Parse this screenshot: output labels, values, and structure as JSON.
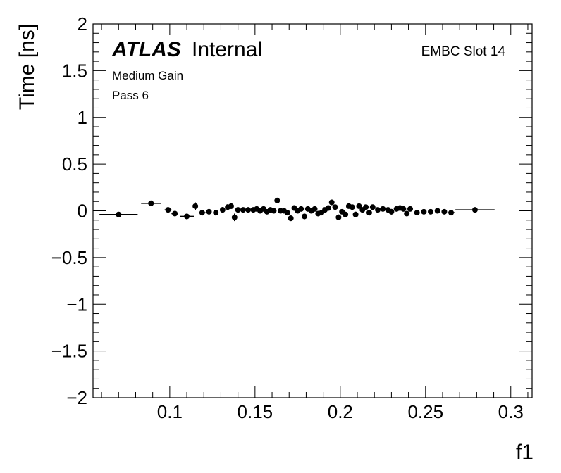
{
  "chart_data": {
    "type": "scatter",
    "xlabel": "f1",
    "ylabel": "Time [ns]",
    "xlim": [
      0.055,
      0.3125
    ],
    "ylim": [
      -2,
      2
    ],
    "x_ticks": [
      0.1,
      0.15,
      0.2,
      0.25,
      0.3
    ],
    "x_tick_labels": [
      "0.1",
      "0.15",
      "0.2",
      "0.25",
      "0.3"
    ],
    "y_ticks": [
      -2,
      -1.5,
      -1,
      -0.5,
      0,
      0.5,
      1,
      1.5,
      2
    ],
    "y_tick_labels": [
      "−2",
      "−1.5",
      "−1",
      "−0.5",
      "0",
      "0.5",
      "1",
      "1.5",
      "2"
    ],
    "grid": false,
    "annotations": {
      "atlas": "ATLAS",
      "internal": "Internal",
      "gain": "Medium Gain",
      "pass": "Pass 6",
      "slot": "EMBC Slot 14"
    },
    "points": [
      {
        "x": 0.07,
        "y": -0.04,
        "xerr": 0.0112,
        "yerr": 0.02
      },
      {
        "x": 0.089,
        "y": 0.08,
        "xerr": 0.0058,
        "yerr": 0.03
      },
      {
        "x": 0.099,
        "y": 0.01,
        "xerr": 0.002,
        "yerr": 0.02
      },
      {
        "x": 0.103,
        "y": -0.03,
        "xerr": 0.002,
        "yerr": 0.02
      },
      {
        "x": 0.11,
        "y": -0.06,
        "xerr": 0.0041,
        "yerr": 0.03
      },
      {
        "x": 0.115,
        "y": 0.05,
        "xerr": 0.001,
        "yerr": 0.04
      },
      {
        "x": 0.119,
        "y": -0.02,
        "xerr": 0.002,
        "yerr": 0.03
      },
      {
        "x": 0.123,
        "y": -0.01,
        "xerr": 0.001,
        "yerr": 0.03
      },
      {
        "x": 0.127,
        "y": -0.02,
        "xerr": 0.001,
        "yerr": 0.03
      },
      {
        "x": 0.131,
        "y": 0.01,
        "xerr": 0.001,
        "yerr": 0.03
      },
      {
        "x": 0.134,
        "y": 0.04,
        "xerr": 0.0008,
        "yerr": 0.03
      },
      {
        "x": 0.136,
        "y": 0.05,
        "xerr": 0.0008,
        "yerr": 0.03
      },
      {
        "x": 0.138,
        "y": -0.07,
        "xerr": 0.0008,
        "yerr": 0.04
      },
      {
        "x": 0.14,
        "y": 0.01,
        "xerr": 0.0008,
        "yerr": 0.02
      },
      {
        "x": 0.143,
        "y": 0.01,
        "xerr": 0.0008,
        "yerr": 0.02
      },
      {
        "x": 0.146,
        "y": 0.01,
        "xerr": 0.0008,
        "yerr": 0.02
      },
      {
        "x": 0.149,
        "y": 0.01,
        "xerr": 0.0008,
        "yerr": 0.02
      },
      {
        "x": 0.151,
        "y": 0.02,
        "xerr": 0.0008,
        "yerr": 0.02
      },
      {
        "x": 0.153,
        "y": 0.0,
        "xerr": 0.0008,
        "yerr": 0.02
      },
      {
        "x": 0.155,
        "y": 0.02,
        "xerr": 0.0008,
        "yerr": 0.02
      },
      {
        "x": 0.157,
        "y": -0.01,
        "xerr": 0.0008,
        "yerr": 0.02
      },
      {
        "x": 0.159,
        "y": 0.01,
        "xerr": 0.0008,
        "yerr": 0.02
      },
      {
        "x": 0.161,
        "y": 0.0,
        "xerr": 0.0008,
        "yerr": 0.02
      },
      {
        "x": 0.163,
        "y": 0.11,
        "xerr": 0.0008,
        "yerr": 0.03
      },
      {
        "x": 0.165,
        "y": 0.0,
        "xerr": 0.0008,
        "yerr": 0.02
      },
      {
        "x": 0.167,
        "y": 0.0,
        "xerr": 0.0008,
        "yerr": 0.02
      },
      {
        "x": 0.169,
        "y": -0.02,
        "xerr": 0.0008,
        "yerr": 0.02
      },
      {
        "x": 0.171,
        "y": -0.08,
        "xerr": 0.0008,
        "yerr": 0.03
      },
      {
        "x": 0.173,
        "y": 0.03,
        "xerr": 0.0008,
        "yerr": 0.02
      },
      {
        "x": 0.175,
        "y": 0.0,
        "xerr": 0.0008,
        "yerr": 0.02
      },
      {
        "x": 0.177,
        "y": 0.02,
        "xerr": 0.0008,
        "yerr": 0.02
      },
      {
        "x": 0.179,
        "y": -0.06,
        "xerr": 0.0008,
        "yerr": 0.03
      },
      {
        "x": 0.181,
        "y": 0.02,
        "xerr": 0.0008,
        "yerr": 0.02
      },
      {
        "x": 0.183,
        "y": 0.0,
        "xerr": 0.0008,
        "yerr": 0.02
      },
      {
        "x": 0.185,
        "y": 0.02,
        "xerr": 0.0008,
        "yerr": 0.02
      },
      {
        "x": 0.187,
        "y": -0.03,
        "xerr": 0.0008,
        "yerr": 0.02
      },
      {
        "x": 0.189,
        "y": -0.02,
        "xerr": 0.0008,
        "yerr": 0.02
      },
      {
        "x": 0.191,
        "y": 0.01,
        "xerr": 0.0008,
        "yerr": 0.02
      },
      {
        "x": 0.193,
        "y": 0.03,
        "xerr": 0.0008,
        "yerr": 0.02
      },
      {
        "x": 0.195,
        "y": 0.09,
        "xerr": 0.0008,
        "yerr": 0.03
      },
      {
        "x": 0.197,
        "y": 0.04,
        "xerr": 0.0008,
        "yerr": 0.02
      },
      {
        "x": 0.199,
        "y": -0.07,
        "xerr": 0.0008,
        "yerr": 0.03
      },
      {
        "x": 0.201,
        "y": -0.01,
        "xerr": 0.0008,
        "yerr": 0.02
      },
      {
        "x": 0.203,
        "y": -0.04,
        "xerr": 0.0008,
        "yerr": 0.03
      },
      {
        "x": 0.205,
        "y": 0.05,
        "xerr": 0.0008,
        "yerr": 0.02
      },
      {
        "x": 0.207,
        "y": 0.04,
        "xerr": 0.0008,
        "yerr": 0.02
      },
      {
        "x": 0.209,
        "y": -0.04,
        "xerr": 0.0008,
        "yerr": 0.03
      },
      {
        "x": 0.211,
        "y": 0.05,
        "xerr": 0.0008,
        "yerr": 0.02
      },
      {
        "x": 0.213,
        "y": 0.01,
        "xerr": 0.0008,
        "yerr": 0.02
      },
      {
        "x": 0.215,
        "y": 0.04,
        "xerr": 0.0008,
        "yerr": 0.02
      },
      {
        "x": 0.217,
        "y": -0.02,
        "xerr": 0.0008,
        "yerr": 0.03
      },
      {
        "x": 0.219,
        "y": 0.04,
        "xerr": 0.0008,
        "yerr": 0.02
      },
      {
        "x": 0.222,
        "y": 0.01,
        "xerr": 0.0008,
        "yerr": 0.02
      },
      {
        "x": 0.225,
        "y": 0.02,
        "xerr": 0.0008,
        "yerr": 0.02
      },
      {
        "x": 0.228,
        "y": 0.01,
        "xerr": 0.0008,
        "yerr": 0.02
      },
      {
        "x": 0.23,
        "y": -0.01,
        "xerr": 0.0008,
        "yerr": 0.03
      },
      {
        "x": 0.233,
        "y": 0.02,
        "xerr": 0.0008,
        "yerr": 0.02
      },
      {
        "x": 0.235,
        "y": 0.03,
        "xerr": 0.0008,
        "yerr": 0.02
      },
      {
        "x": 0.237,
        "y": 0.02,
        "xerr": 0.0008,
        "yerr": 0.02
      },
      {
        "x": 0.239,
        "y": -0.03,
        "xerr": 0.0008,
        "yerr": 0.02
      },
      {
        "x": 0.241,
        "y": 0.02,
        "xerr": 0.0008,
        "yerr": 0.02
      },
      {
        "x": 0.245,
        "y": -0.02,
        "xerr": 0.0012,
        "yerr": 0.02
      },
      {
        "x": 0.249,
        "y": -0.01,
        "xerr": 0.0012,
        "yerr": 0.02
      },
      {
        "x": 0.253,
        "y": -0.01,
        "xerr": 0.0012,
        "yerr": 0.02
      },
      {
        "x": 0.257,
        "y": 0.0,
        "xerr": 0.0012,
        "yerr": 0.02
      },
      {
        "x": 0.261,
        "y": -0.01,
        "xerr": 0.0012,
        "yerr": 0.02
      },
      {
        "x": 0.265,
        "y": -0.02,
        "xerr": 0.002,
        "yerr": 0.02
      },
      {
        "x": 0.279,
        "y": 0.01,
        "xerr": 0.0115,
        "yerr": 0.02
      }
    ]
  }
}
